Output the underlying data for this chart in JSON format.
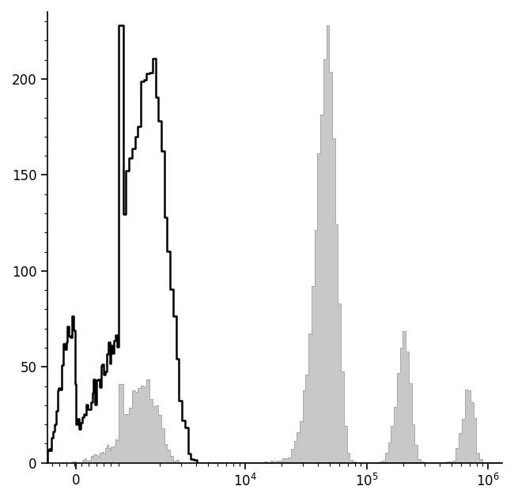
{
  "ylim": [
    0,
    235
  ],
  "yticks": [
    0,
    50,
    100,
    150,
    200
  ],
  "xtick_labels": [
    "0",
    "$10^4$",
    "$10^5$",
    "$10^6$"
  ],
  "xtick_positions": [
    0,
    10000,
    100000,
    1000000
  ],
  "background_color": "#ffffff",
  "gray_fill_color": "#c8c8c8",
  "gray_edge_color": "#aaaaaa",
  "black_line_color": "#000000",
  "linewidth_black": 1.8,
  "linewidth_gray": 0.7,
  "xlim_low": -600,
  "xlim_high": 1300000,
  "linthresh": 1000,
  "linscale": 0.35
}
